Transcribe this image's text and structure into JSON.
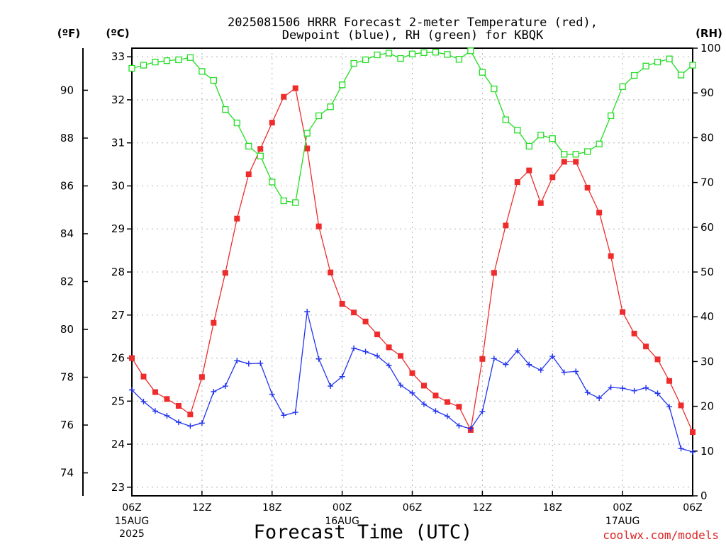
{
  "chart_data": {
    "type": "line",
    "title_line1": "2025081506 HRRR Forecast 2-meter Temperature (red),",
    "title_line2": "Dewpoint (blue), RH (green) for KBQK",
    "xlabel": "Forecast Time (UTC)",
    "credit": "coolwx.com/models",
    "unit_f": "(ºF)",
    "unit_c": "(ºC)",
    "unit_rh": "(RH)",
    "x_hours": [
      6,
      7,
      8,
      9,
      10,
      11,
      12,
      13,
      14,
      15,
      16,
      17,
      18,
      19,
      20,
      21,
      22,
      23,
      24,
      25,
      26,
      27,
      28,
      29,
      30,
      31,
      32,
      33,
      34,
      35,
      36,
      37,
      38,
      39,
      40,
      41,
      42,
      43,
      44,
      45,
      46,
      47,
      48,
      49,
      50,
      51,
      52,
      53,
      54
    ],
    "x_ticks": [
      {
        "hour": 6,
        "label": "06Z",
        "sub1": "15AUG",
        "sub2": "2025"
      },
      {
        "hour": 12,
        "label": "12Z",
        "sub1": "",
        "sub2": ""
      },
      {
        "hour": 18,
        "label": "18Z",
        "sub1": "",
        "sub2": ""
      },
      {
        "hour": 24,
        "label": "00Z",
        "sub1": "16AUG",
        "sub2": ""
      },
      {
        "hour": 30,
        "label": "06Z",
        "sub1": "",
        "sub2": ""
      },
      {
        "hour": 36,
        "label": "12Z",
        "sub1": "",
        "sub2": ""
      },
      {
        "hour": 42,
        "label": "18Z",
        "sub1": "",
        "sub2": ""
      },
      {
        "hour": 48,
        "label": "00Z",
        "sub1": "17AUG",
        "sub2": ""
      },
      {
        "hour": 54,
        "label": "06Z",
        "sub1": "",
        "sub2": ""
      }
    ],
    "ylim_c": [
      22.8,
      33.2
    ],
    "ylim_rh": [
      0,
      100
    ],
    "c_ticks": [
      23,
      24,
      25,
      26,
      27,
      28,
      29,
      30,
      31,
      32,
      33
    ],
    "f_ticks": [
      74,
      76,
      78,
      80,
      82,
      84,
      86,
      88,
      90
    ],
    "rh_ticks": [
      0,
      10,
      20,
      30,
      40,
      50,
      60,
      70,
      80,
      90,
      100
    ],
    "grid": true,
    "series": [
      {
        "name": "2-meter Temperature",
        "color": "#ee2c2c",
        "marker": "filled-square",
        "axis": "celsius",
        "values": [
          26.0,
          25.57,
          25.21,
          25.05,
          24.89,
          24.69,
          25.56,
          26.82,
          27.98,
          29.24,
          30.27,
          30.86,
          31.47,
          32.07,
          32.27,
          30.87,
          29.06,
          27.99,
          27.26,
          27.06,
          26.85,
          26.55,
          26.25,
          26.05,
          25.65,
          25.36,
          25.13,
          24.98,
          24.87,
          24.33,
          25.98,
          27.98,
          29.08,
          30.09,
          30.36,
          29.6,
          30.2,
          30.56,
          30.56,
          29.96,
          29.38,
          28.37,
          27.07,
          26.57,
          26.27,
          25.97,
          25.47,
          24.9,
          24.28
        ]
      },
      {
        "name": "Dewpoint",
        "color": "#2233ee",
        "marker": "plus",
        "axis": "celsius",
        "values": [
          25.26,
          24.99,
          24.77,
          24.66,
          24.51,
          24.42,
          24.49,
          25.22,
          25.35,
          25.94,
          25.87,
          25.88,
          25.16,
          24.67,
          24.74,
          27.08,
          25.98,
          25.35,
          25.57,
          26.23,
          26.15,
          26.05,
          25.83,
          25.37,
          25.19,
          24.93,
          24.77,
          24.65,
          24.43,
          24.36,
          24.76,
          25.99,
          25.85,
          26.17,
          25.85,
          25.72,
          26.04,
          25.67,
          25.69,
          25.2,
          25.07,
          25.32,
          25.3,
          25.24,
          25.31,
          25.18,
          24.87,
          23.9,
          23.82
        ]
      },
      {
        "name": "RH",
        "color": "#22dd22",
        "marker": "open-square",
        "axis": "rh",
        "values": [
          95.5,
          96.2,
          96.9,
          97.2,
          97.4,
          97.9,
          94.8,
          92.8,
          86.3,
          83.3,
          78.1,
          75.9,
          70.1,
          65.9,
          65.5,
          81.0,
          84.9,
          86.9,
          91.8,
          96.6,
          97.4,
          98.5,
          98.9,
          97.7,
          98.7,
          99.0,
          99.1,
          98.6,
          97.5,
          99.4,
          94.6,
          90.9,
          84.0,
          81.7,
          78.1,
          80.6,
          79.8,
          76.3,
          76.3,
          76.9,
          78.6,
          84.9,
          91.4,
          93.9,
          96.0,
          96.9,
          97.6,
          94.0,
          96.2
        ]
      }
    ]
  }
}
